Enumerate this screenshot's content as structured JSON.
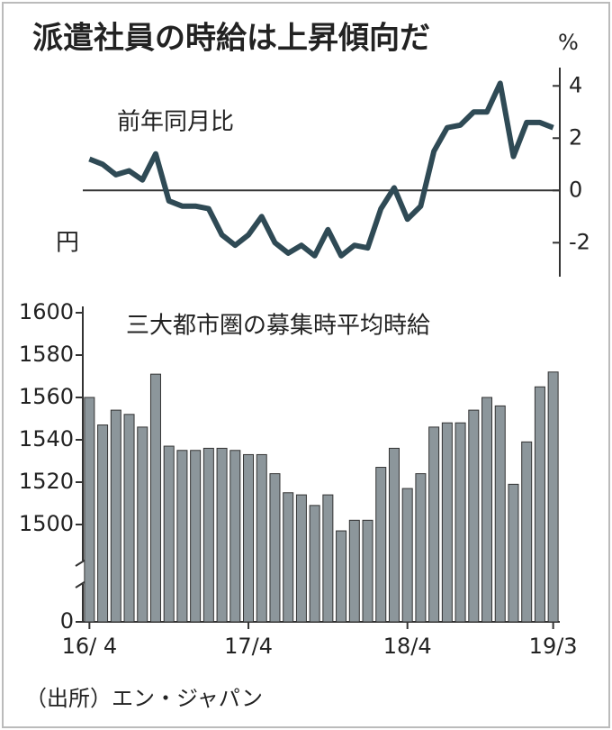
{
  "title": "派遣社員の時給は上昇傾向だ",
  "source": "（出所）エン・ジャパン",
  "chart_data": [
    {
      "type": "line",
      "title": "前年同月比",
      "unit": "%",
      "color": "#2f4a55",
      "values": [
        1.2,
        1.0,
        0.6,
        0.75,
        0.4,
        1.4,
        -0.4,
        -0.6,
        -0.6,
        -0.7,
        -1.7,
        -2.1,
        -1.7,
        -1.0,
        -2.0,
        -2.4,
        -2.1,
        -2.5,
        -1.5,
        -2.5,
        -2.1,
        -2.2,
        -0.7,
        0.1,
        -1.1,
        -0.6,
        1.5,
        2.4,
        2.5,
        3.0,
        3.0,
        4.1,
        1.3,
        2.6,
        2.6,
        2.4
      ],
      "ylim": [
        -3.3,
        4.7
      ],
      "yticks": [
        -2,
        0,
        2,
        4
      ],
      "zero_line": true,
      "axis_side": "right"
    },
    {
      "type": "bar",
      "title": "三大都市圏の募集時平均時給",
      "unit": "円",
      "color": "#8c969b",
      "categories": [
        "16/ 4",
        null,
        null,
        null,
        null,
        null,
        null,
        null,
        null,
        null,
        null,
        null,
        "17/4",
        null,
        null,
        null,
        null,
        null,
        null,
        null,
        null,
        null,
        null,
        null,
        "18/4",
        null,
        null,
        null,
        null,
        null,
        null,
        null,
        null,
        null,
        null,
        "19/3"
      ],
      "values": [
        1560,
        1547,
        1554,
        1552,
        1546,
        1571,
        1537,
        1535,
        1535,
        1536,
        1536,
        1535,
        1533,
        1533,
        1524,
        1515,
        1514,
        1509,
        1514,
        1497,
        1502,
        1502,
        1527,
        1536,
        1517,
        1524,
        1546,
        1548,
        1548,
        1554,
        1560,
        1556,
        1519,
        1539,
        1565,
        1572
      ],
      "ylim": [
        0,
        1600
      ],
      "yticks": [
        0,
        1500,
        1520,
        1540,
        1560,
        1580,
        1600
      ],
      "axis_break": true,
      "axis_side": "left"
    }
  ]
}
